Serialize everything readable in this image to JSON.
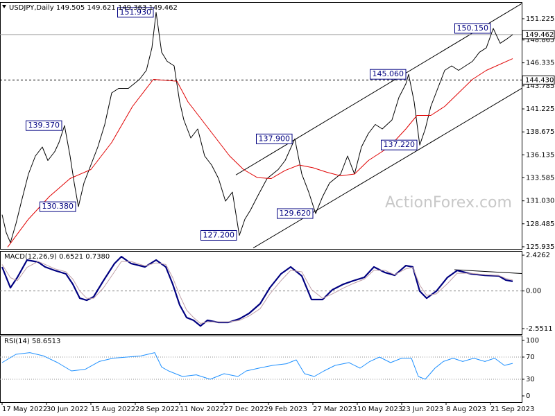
{
  "chart_data": [
    {
      "type": "line",
      "title": "USDJPY,Daily  149.505 149.621 149.363 149.462",
      "watermark": "ActionForex.com",
      "xlim": [
        -1.5,
        374.5
      ],
      "ylim": [
        125.7,
        153.07
      ],
      "yticks": [
        151.225,
        148.865,
        146.335,
        143.785,
        141.225,
        138.675,
        136.135,
        133.585,
        {
          "value": 131.03,
          "label": "131.030"
        },
        128.485,
        125.935
      ],
      "series": [
        {
          "color": "#000000",
          "x": [
            0,
            3,
            6,
            10,
            14,
            19,
            24,
            29,
            33,
            38,
            41,
            45,
            49,
            52,
            55,
            59,
            64,
            69,
            74,
            79,
            84,
            91,
            99,
            104,
            108,
            111,
            115,
            119,
            124,
            128,
            131,
            136,
            141,
            146,
            151,
            156,
            161,
            166,
            171,
            175,
            179,
            184,
            191,
            199,
            204,
            211,
            216,
            221,
            226,
            231,
            236,
            244,
            249,
            254,
            259,
            264,
            269,
            274,
            281,
            286,
            291,
            293,
            297,
            301,
            305,
            309,
            314,
            319,
            324,
            329,
            334,
            339,
            344,
            349,
            354,
            359,
            364,
            368
          ],
          "values": [
            129.5,
            127.5,
            126.4,
            128.5,
            131,
            134,
            136,
            137,
            135.5,
            136.5,
            137.5,
            139.37,
            136,
            133,
            130.38,
            133,
            135,
            137,
            139.5,
            143,
            143.5,
            143.5,
            144.5,
            145.5,
            148,
            151.93,
            147.5,
            146.5,
            146,
            142,
            140,
            138,
            139,
            136,
            135,
            133.5,
            131,
            132,
            127.2,
            129,
            130,
            131.5,
            133.5,
            134.5,
            135.5,
            137.9,
            134,
            132,
            129.62,
            131.5,
            133,
            134,
            136,
            134,
            137,
            138.5,
            139.5,
            139,
            140,
            142.5,
            144,
            145.06,
            142,
            137.22,
            139,
            141.5,
            143.5,
            145.5,
            146,
            145.5,
            146,
            146.5,
            147.5,
            148,
            150.15,
            148.5,
            149,
            149.462
          ]
        },
        {
          "color": "#e00000",
          "x": [
            4,
            19,
            34,
            49,
            64,
            79,
            94,
            109,
            126,
            134,
            149,
            164,
            174,
            184,
            194,
            204,
            214,
            224,
            234,
            244,
            254,
            264,
            279,
            291,
            299,
            309,
            319,
            329,
            339,
            349,
            368
          ],
          "values": [
            125.9,
            129,
            131.5,
            133.5,
            134.5,
            137.5,
            141.5,
            144.5,
            144.3,
            142,
            139,
            136,
            134.5,
            133.6,
            133.5,
            134.4,
            135,
            134.7,
            134.2,
            133.8,
            134,
            135.5,
            137,
            139,
            140.5,
            140.5,
            141.5,
            143,
            144.5,
            145.5,
            146.8
          ]
        }
      ],
      "hlines": [
        {
          "value": 149.462,
          "label": "149.462",
          "style": "solid",
          "color": "#a0a0a0"
        },
        {
          "value": 144.43,
          "label": "144.430",
          "style": "dashed",
          "color": "#000000"
        }
      ],
      "trendlines": [
        {
          "x": [
            168.5,
            374.5
          ],
          "values": [
            133.9,
            152.9
          ]
        },
        {
          "x": [
            181,
            374.5
          ],
          "values": [
            125.8,
            143.5
          ]
        }
      ],
      "annotations": [
        {
          "x": 111,
          "value": 151.93,
          "label": "151.930"
        },
        {
          "x": 45,
          "value": 139.37,
          "label": "139.370"
        },
        {
          "x": 55,
          "value": 130.38,
          "label": "130.380"
        },
        {
          "x": 171,
          "value": 127.2,
          "label": "127.200"
        },
        {
          "x": 211,
          "value": 137.9,
          "label": "137.900"
        },
        {
          "x": 226,
          "value": 129.62,
          "label": "129.620"
        },
        {
          "x": 293,
          "value": 145.06,
          "label": "145.060"
        },
        {
          "x": 301,
          "value": 137.22,
          "label": "137.220"
        },
        {
          "x": 354,
          "value": 150.15,
          "label": "150.150"
        }
      ]
    },
    {
      "type": "line",
      "title": "MACD(12,26,9) 0.6521 0.7380",
      "xlim": [
        -1.5,
        374.5
      ],
      "ylim": [
        -2.93,
        2.71
      ],
      "yticks": [
        2.4262,
        {
          "value": 0,
          "label": "0.00"
        },
        -2.5511
      ],
      "series": [
        {
          "color": "#000080",
          "x": [
            0,
            6,
            11,
            18,
            26,
            31,
            38,
            46,
            51,
            56,
            61,
            66,
            73,
            81,
            86,
            93,
            103,
            111,
            118,
            123,
            128,
            133,
            138,
            143,
            148,
            156,
            163,
            171,
            178,
            186,
            193,
            201,
            208,
            216,
            223,
            231,
            238,
            246,
            253,
            261,
            268,
            276,
            283,
            291,
            296,
            301,
            306,
            313,
            321,
            328,
            338,
            348,
            358,
            363,
            368
          ],
          "values": [
            1.63,
            0.22,
            0.92,
            2.1,
            1.96,
            1.63,
            1.39,
            1.16,
            0.46,
            -0.49,
            -0.63,
            -0.39,
            0.69,
            1.86,
            2.33,
            1.86,
            1.63,
            2.1,
            1.63,
            0.46,
            -0.95,
            -1.8,
            -1.99,
            -2.37,
            -1.99,
            -2.13,
            -2.13,
            -1.89,
            -1.52,
            -0.86,
            0.22,
            1.16,
            1.63,
            1.02,
            -0.58,
            -0.58,
            0.08,
            0.46,
            0.69,
            0.92,
            1.63,
            1.25,
            1.06,
            1.72,
            1.63,
            -0.01,
            -0.49,
            -0.01,
            0.92,
            1.39,
            1.16,
            1.06,
            1.02,
            0.74,
            0.6521
          ]
        },
        {
          "color": "#c0a0a8",
          "x": [
            0,
            6,
            11,
            18,
            26,
            31,
            38,
            46,
            51,
            56,
            61,
            66,
            73,
            81,
            86,
            93,
            103,
            111,
            118,
            123,
            128,
            133,
            138,
            143,
            148,
            156,
            163,
            171,
            178,
            186,
            193,
            201,
            208,
            216,
            223,
            231,
            238,
            246,
            253,
            261,
            268,
            276,
            283,
            291,
            296,
            301,
            306,
            313,
            321,
            328,
            338,
            348,
            358,
            363,
            368
          ],
          "values": [
            1.8,
            0.9,
            0.7,
            1.6,
            2.0,
            1.8,
            1.5,
            1.3,
            0.8,
            0.0,
            -0.5,
            -0.5,
            0.2,
            1.3,
            2.0,
            2.0,
            1.7,
            1.9,
            1.8,
            0.9,
            -0.3,
            -1.3,
            -1.8,
            -2.2,
            -2.1,
            -2.1,
            -2.1,
            -2.0,
            -1.7,
            -1.2,
            -0.2,
            0.7,
            1.4,
            1.3,
            0.1,
            -0.5,
            -0.2,
            0.2,
            0.5,
            0.8,
            1.4,
            1.4,
            1.1,
            1.5,
            1.6,
            0.4,
            -0.3,
            -0.2,
            0.5,
            1.2,
            1.2,
            1.1,
            1.05,
            0.85,
            0.738
          ]
        }
      ],
      "hlines": [
        {
          "value": 0,
          "style": "dashed",
          "color": "#808080"
        }
      ],
      "trendlines": [
        {
          "x": [
            326,
            374.5
          ],
          "values": [
            1.44,
            1.18
          ]
        }
      ]
    },
    {
      "type": "line",
      "title": "RSI(14) 58.6513",
      "xlim": [
        -1.5,
        374.5
      ],
      "ylim": [
        -11.25,
        108.75
      ],
      "yticks": [
        100,
        70,
        30,
        0
      ],
      "xticks": [
        {
          "value": 0,
          "label": "17 May 2022"
        },
        {
          "value": 32,
          "label": "30 Jun 2022"
        },
        {
          "value": 64,
          "label": "15 Aug 2022"
        },
        {
          "value": 96,
          "label": "28 Sep 2022"
        },
        {
          "value": 128,
          "label": "11 Nov 2022"
        },
        {
          "value": 160,
          "label": "27 Dec 2022"
        },
        {
          "value": 192,
          "label": "9 Feb 2023"
        },
        {
          "value": 224,
          "label": "27 Mar 2023"
        },
        {
          "value": 256,
          "label": "10 May 2023"
        },
        {
          "value": 288,
          "label": "23 Jun 2023"
        },
        {
          "value": 320,
          "label": "8 Aug 2023"
        },
        {
          "value": 352,
          "label": "21 Sep 2023"
        }
      ],
      "series": [
        {
          "color": "#1e90ff",
          "x": [
            0,
            10,
            20,
            30,
            40,
            50,
            60,
            70,
            80,
            90,
            100,
            110,
            115,
            120,
            130,
            140,
            150,
            160,
            170,
            176,
            185,
            195,
            205,
            212,
            218,
            225,
            232,
            240,
            250,
            258,
            265,
            272,
            280,
            288,
            295,
            300,
            305,
            312,
            318,
            325,
            332,
            340,
            348,
            355,
            362,
            368
          ],
          "values": [
            60,
            75,
            78,
            72,
            60,
            45,
            48,
            62,
            68,
            70,
            72,
            78,
            52,
            45,
            35,
            38,
            30,
            40,
            35,
            45,
            50,
            55,
            58,
            65,
            40,
            35,
            45,
            55,
            60,
            50,
            62,
            70,
            60,
            68,
            68,
            35,
            30,
            50,
            62,
            68,
            62,
            68,
            62,
            68,
            55,
            58.6513
          ]
        }
      ],
      "hlines": [
        {
          "value": 70,
          "style": "dotted",
          "color": "#909090"
        },
        {
          "value": 30,
          "style": "dotted",
          "color": "#909090"
        }
      ]
    }
  ]
}
